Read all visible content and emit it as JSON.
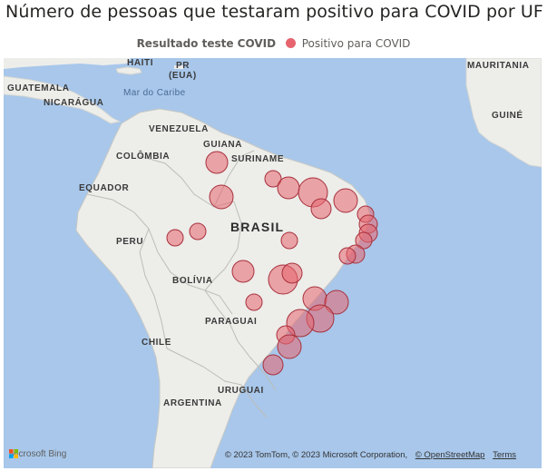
{
  "header": {
    "title": "Número de pessoas que testaram positivo para COVID por UF"
  },
  "legend": {
    "title": "Resultado teste COVID",
    "item": "Positivo para COVID",
    "color": "#e6646e"
  },
  "map": {
    "labels": {
      "haiti": "HAITI",
      "pr": "PR",
      "eua": "(EUA)",
      "mauritania": "MAURITANIA",
      "guatemala": "GUATEMALA",
      "nicaragua": "NICARÁGUA",
      "mar_caribe": "Mar do Caribe",
      "guine": "GUINÉ",
      "venezuela": "VENEZUELA",
      "guiana": "GUIANA",
      "suriname": "SURINAME",
      "colombia": "COLÔMBIA",
      "equador": "EQUADOR",
      "brasil": "BRASIL",
      "peru": "PERU",
      "bolivia": "BOLÍVIA",
      "paraguai": "PARAGUAI",
      "chile": "CHILE",
      "uruguai": "URUGUAI",
      "argentina": "ARGENTINA"
    },
    "bubble_color": "#e6646e",
    "bubble_stroke": "#a8303c"
  },
  "footer": {
    "bing": "Microsoft Bing",
    "copyright": "© 2023 TomTom, © 2023 Microsoft Corporation,",
    "osm_link": "© OpenStreetMap",
    "terms_link": "Terms"
  }
}
